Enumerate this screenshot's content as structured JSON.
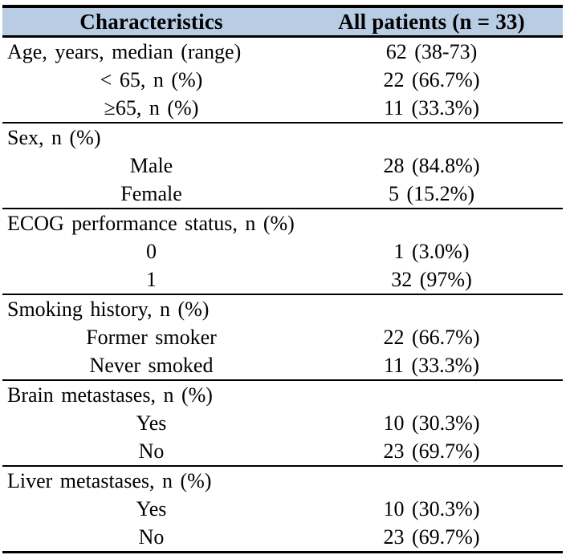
{
  "colors": {
    "header_bg": "#b8cce4",
    "border": "#000000",
    "text": "#000000",
    "page_bg": "#ffffff"
  },
  "table": {
    "columns": [
      {
        "label": "Characteristics"
      },
      {
        "label": "All patients (n = 33)"
      }
    ],
    "rows": [
      {
        "label": "Age, years, median (range)",
        "value": "62 (38-73)",
        "indent": false,
        "section_start": false
      },
      {
        "label": "< 65, n (%)",
        "value": "22 (66.7%)",
        "indent": true,
        "section_start": false
      },
      {
        "label": "≥65, n (%)",
        "value": "11 (33.3%)",
        "indent": true,
        "section_start": false
      },
      {
        "label": "Sex, n (%)",
        "value": "",
        "indent": false,
        "section_start": true
      },
      {
        "label": "Male",
        "value": "28 (84.8%)",
        "indent": true,
        "section_start": false
      },
      {
        "label": "Female",
        "value": "5 (15.2%)",
        "indent": true,
        "section_start": false
      },
      {
        "label": "ECOG performance status, n (%)",
        "value": "",
        "indent": false,
        "section_start": true
      },
      {
        "label": "0",
        "value": "1 (3.0%)",
        "indent": true,
        "section_start": false
      },
      {
        "label": "1",
        "value": "32 (97%)",
        "indent": true,
        "section_start": false
      },
      {
        "label": "Smoking history, n (%)",
        "value": "",
        "indent": false,
        "section_start": true
      },
      {
        "label": "Former smoker",
        "value": "22 (66.7%)",
        "indent": true,
        "section_start": false
      },
      {
        "label": "Never smoked",
        "value": "11 (33.3%)",
        "indent": true,
        "section_start": false
      },
      {
        "label": "Brain metastases, n (%)",
        "value": "",
        "indent": false,
        "section_start": true
      },
      {
        "label": "Yes",
        "value": "10 (30.3%)",
        "indent": true,
        "section_start": false
      },
      {
        "label": "No",
        "value": "23 (69.7%)",
        "indent": true,
        "section_start": false
      },
      {
        "label": "Liver metastases, n (%)",
        "value": "",
        "indent": false,
        "section_start": true
      },
      {
        "label": "Yes",
        "value": "10 (30.3%)",
        "indent": true,
        "section_start": false
      },
      {
        "label": "No",
        "value": "23 (69.7%)",
        "indent": true,
        "section_start": false
      }
    ]
  }
}
